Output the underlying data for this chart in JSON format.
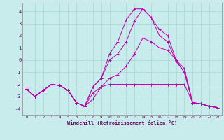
{
  "xlabel": "Windchill (Refroidissement éolien,°C)",
  "background_color": "#c8ecec",
  "grid_color": "#aad4d4",
  "line_color": "#bb00aa",
  "xlim": [
    -0.5,
    23.5
  ],
  "ylim": [
    -4.5,
    4.7
  ],
  "yticks": [
    -4,
    -3,
    -2,
    -1,
    0,
    1,
    2,
    3,
    4
  ],
  "xticks": [
    0,
    1,
    2,
    3,
    4,
    5,
    6,
    7,
    8,
    9,
    10,
    11,
    12,
    13,
    14,
    15,
    16,
    17,
    18,
    19,
    20,
    21,
    22,
    23
  ],
  "x": [
    0,
    1,
    2,
    3,
    4,
    5,
    6,
    7,
    8,
    9,
    10,
    11,
    12,
    13,
    14,
    15,
    16,
    17,
    18,
    19,
    20,
    21,
    22,
    23
  ],
  "series": [
    [
      -2.4,
      -3.0,
      -2.5,
      -2.0,
      -2.1,
      -2.5,
      -3.5,
      -3.8,
      -3.2,
      -2.2,
      -2.0,
      -2.0,
      -2.0,
      -2.0,
      -2.0,
      -2.0,
      -2.0,
      -2.0,
      -2.0,
      -2.0,
      -3.5,
      -3.6,
      -3.8,
      -3.9
    ],
    [
      -2.4,
      -3.0,
      -2.5,
      -2.0,
      -2.1,
      -2.5,
      -3.5,
      -3.8,
      -2.7,
      -2.2,
      -1.5,
      -1.2,
      -0.5,
      0.5,
      1.8,
      1.5,
      1.0,
      0.8,
      0.0,
      -0.7,
      -3.5,
      -3.6,
      -3.8,
      -3.9
    ],
    [
      -2.4,
      -3.0,
      -2.5,
      -2.0,
      -2.1,
      -2.5,
      -3.5,
      -3.8,
      -2.2,
      -1.5,
      0.0,
      0.5,
      1.5,
      3.2,
      4.2,
      3.5,
      2.0,
      1.5,
      -0.1,
      -1.0,
      -3.5,
      -3.6,
      -3.8,
      -3.9
    ],
    [
      -2.4,
      -3.0,
      -2.5,
      -2.0,
      -2.1,
      -2.5,
      -3.5,
      -3.8,
      -2.2,
      -1.5,
      0.5,
      1.5,
      3.3,
      4.2,
      4.2,
      3.5,
      2.5,
      2.0,
      0.0,
      -1.0,
      -3.5,
      -3.6,
      -3.8,
      -3.9
    ]
  ]
}
